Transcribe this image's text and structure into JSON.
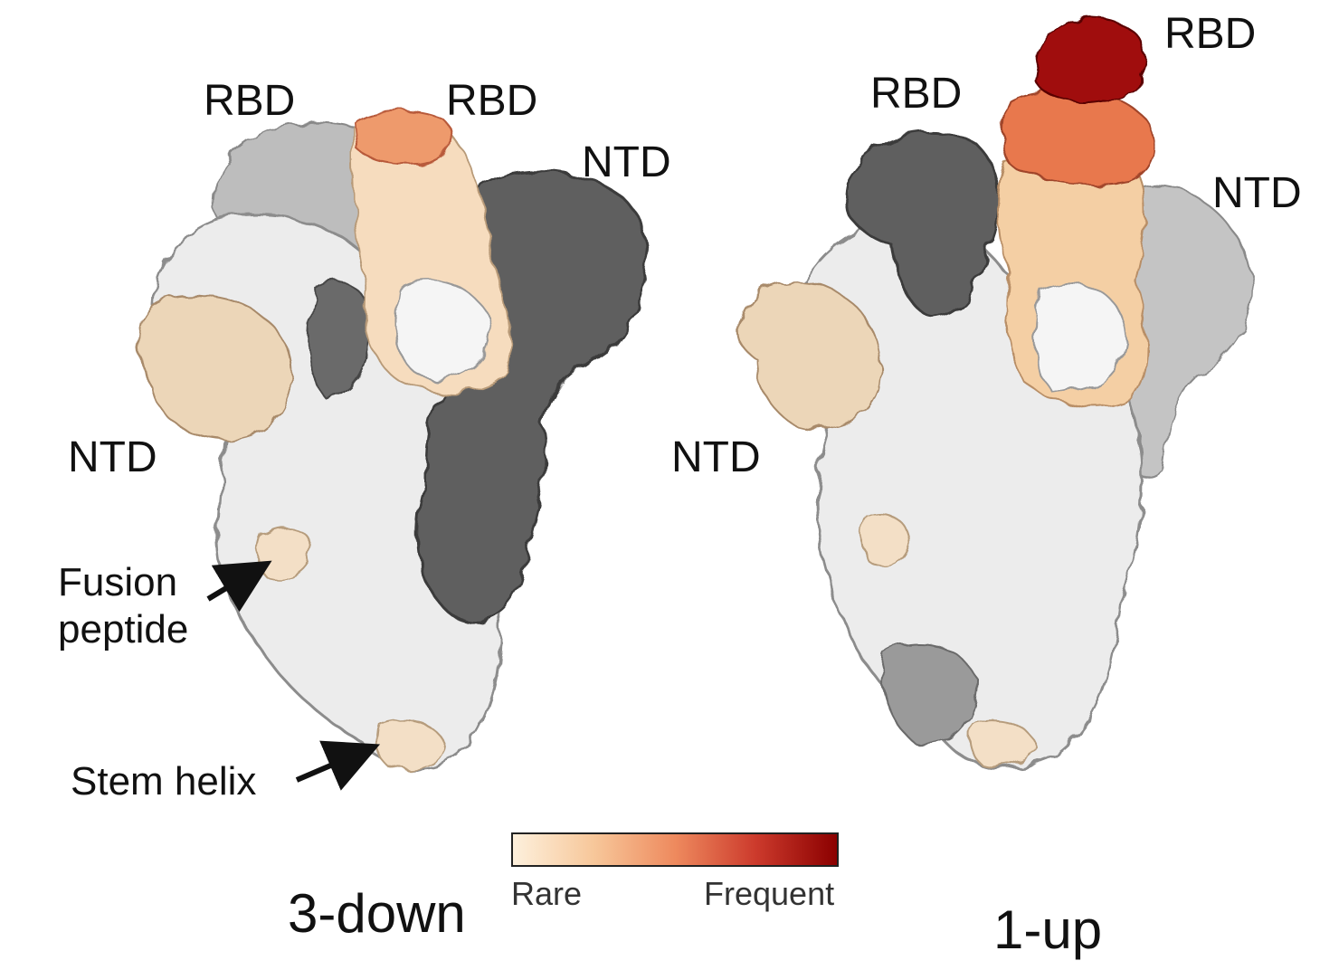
{
  "left_panel": {
    "state": "3-down",
    "labels": {
      "rbd_a": "RBD",
      "rbd_b": "RBD",
      "ntd_top": "NTD",
      "ntd_left": "NTD",
      "fusion_line1": "Fusion",
      "fusion_line2": "peptide",
      "stem": "Stem helix"
    }
  },
  "right_panel": {
    "state": "1-up",
    "labels": {
      "rbd_up": "RBD",
      "rbd_left": "RBD",
      "ntd_right": "NTD",
      "ntd_left": "NTD"
    }
  },
  "legend": {
    "low_label": "Rare",
    "high_label": "Frequent",
    "colors": [
      "#fdf0dc",
      "#f7c79a",
      "#ee8a5e",
      "#cc3a2c",
      "#8b0000"
    ]
  },
  "colors": {
    "dark_gray": "#5e5e5e",
    "mid_gray": "#a9a9a9",
    "light_gray": "#d4d4d4",
    "white_surface": "#f1f1f1",
    "arrow": "#111111"
  }
}
